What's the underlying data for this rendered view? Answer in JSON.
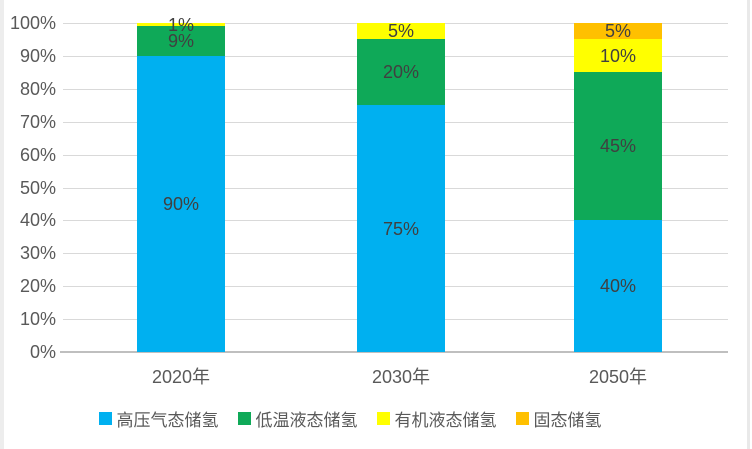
{
  "chart_data": {
    "type": "bar",
    "subtype": "stacked-100-percent",
    "title": "",
    "xlabel": "",
    "ylabel": "",
    "grid": true,
    "legend_position": "bottom",
    "ylim": [
      0,
      100
    ],
    "yticks": [
      "0%",
      "10%",
      "20%",
      "30%",
      "40%",
      "50%",
      "60%",
      "70%",
      "80%",
      "90%",
      "100%"
    ],
    "categories": [
      "2020年",
      "2030年",
      "2050年"
    ],
    "series": [
      {
        "name": "高压气态储氢",
        "color": "#00B0F0",
        "values": [
          90,
          75,
          40
        ],
        "labels": [
          "90%",
          "75%",
          "40%"
        ]
      },
      {
        "name": "低温液态储氢",
        "color": "#0FA958",
        "values": [
          9,
          20,
          45
        ],
        "labels": [
          "9%",
          "20%",
          "45%"
        ]
      },
      {
        "name": "有机液态储氢",
        "color": "#FFFF00",
        "values": [
          1,
          5,
          10
        ],
        "labels": [
          "1%",
          "5%",
          "10%"
        ]
      },
      {
        "name": "固态储氢",
        "color": "#FFC000",
        "values": [
          0,
          0,
          5
        ],
        "labels": [
          "",
          "",
          "5%"
        ]
      }
    ]
  },
  "colors": {
    "background": "#FFFFFF",
    "grid": "#D9D9D9",
    "axis": "#BFBFBF",
    "tick_text": "#595959",
    "data_label_text": "#404040"
  }
}
